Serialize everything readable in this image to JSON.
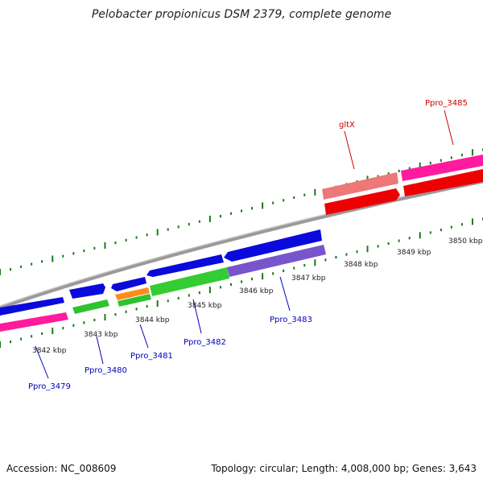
{
  "title": "Pelobacter propionicus DSM 2379, complete genome",
  "footer": {
    "accession": "Accession: NC_008609",
    "summary": "Topology: circular; Length: 4,008,000 bp; Genes: 3,643"
  },
  "colors": {
    "backbone": "#8a8a8a",
    "tick": "#1a7a1a",
    "label_forward": "#cc0000",
    "label_reverse": "#0000bb"
  },
  "kbp_labels": [
    "3842 kbp",
    "3843 kbp",
    "3844 kbp",
    "3845 kbp",
    "3846 kbp",
    "3847 kbp",
    "3848 kbp",
    "3849 kbp",
    "3850 kbp"
  ],
  "gene_labels": [
    "Ppro_3479",
    "Ppro_3480",
    "Ppro_3481",
    "Ppro_3482",
    "Ppro_3483",
    "gltX",
    "Ppro_3485"
  ]
}
